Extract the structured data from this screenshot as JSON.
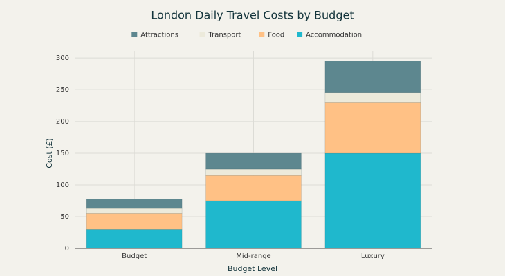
{
  "chart_data": {
    "type": "stacked-bar",
    "title": "London Daily Travel Costs by Budget",
    "x_label": "Budget Level",
    "y_label": "Cost (£)",
    "categories": [
      "Budget",
      "Mid-range",
      "Luxury"
    ],
    "series": [
      {
        "name": "Accommodation",
        "color": "#1fb8cd",
        "values": [
          30,
          75,
          150
        ]
      },
      {
        "name": "Food",
        "color": "#ffc185",
        "values": [
          25,
          40,
          80
        ]
      },
      {
        "name": "Transport",
        "color": "#eceadb",
        "values": [
          8,
          10,
          15
        ]
      },
      {
        "name": "Attractions",
        "color": "#5d878f",
        "values": [
          15,
          25,
          50
        ]
      }
    ],
    "ylim": [
      0,
      311
    ],
    "yticks": [
      0,
      50,
      100,
      150,
      200,
      250,
      300
    ],
    "grid": true
  }
}
